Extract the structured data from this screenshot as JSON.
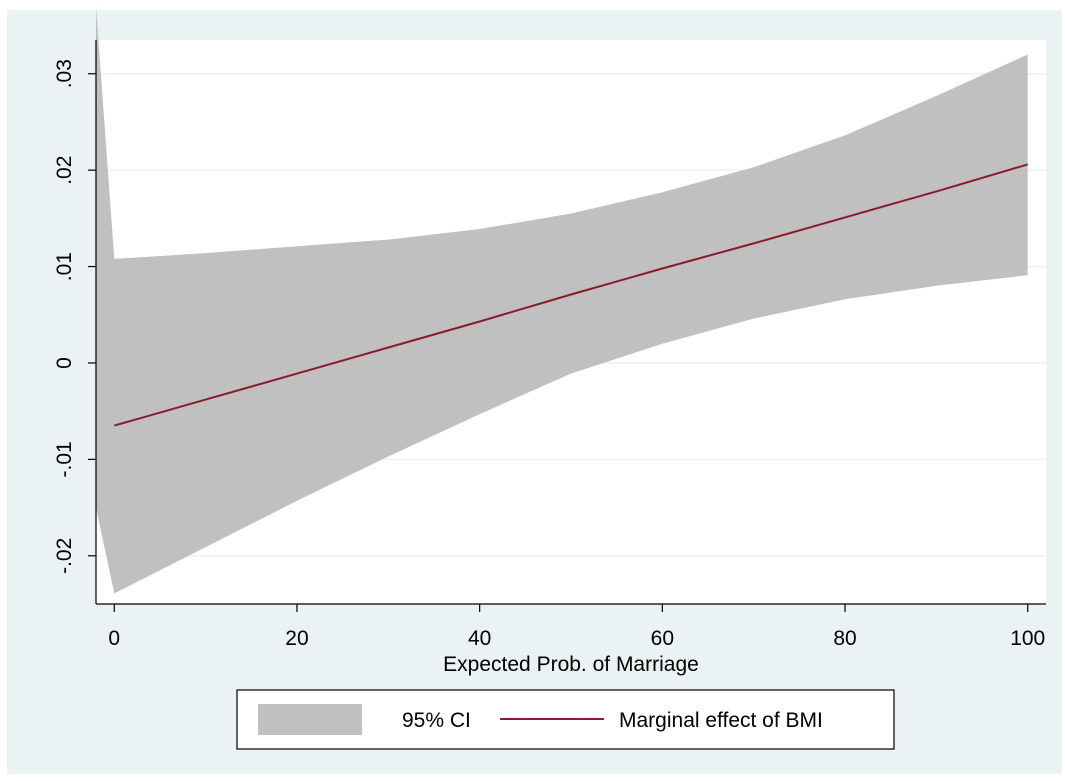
{
  "chart_data": {
    "type": "area",
    "title": "",
    "xlabel": "Expected Prob. of Marriage",
    "ylabel": "",
    "xlim": [
      -2,
      102
    ],
    "ylim": [
      -0.025,
      0.0335
    ],
    "xticks": [
      {
        "value": 0,
        "label": "0"
      },
      {
        "value": 20,
        "label": "20"
      },
      {
        "value": 40,
        "label": "40"
      },
      {
        "value": 60,
        "label": "60"
      },
      {
        "value": 80,
        "label": "80"
      },
      {
        "value": 100,
        "label": "100"
      }
    ],
    "yticks": [
      {
        "value": -0.02,
        "label": "-.02"
      },
      {
        "value": -0.01,
        "label": "-.01"
      },
      {
        "value": 0,
        "label": "0"
      },
      {
        "value": 0.01,
        "label": ".01"
      },
      {
        "value": 0.02,
        "label": ".02"
      },
      {
        "value": 0.03,
        "label": ".03"
      }
    ],
    "grid": true,
    "legend_position": "bottom",
    "x": [
      0,
      10,
      20,
      30,
      40,
      50,
      60,
      70,
      80,
      90,
      100
    ],
    "series": [
      {
        "name": "95% CI",
        "kind": "band",
        "lower": [
          -0.0239,
          -0.0191,
          -0.0143,
          -0.0097,
          -0.0053,
          -0.0011,
          0.002,
          0.0046,
          0.0066,
          0.008,
          0.0091
        ],
        "upper": [
          0.0108,
          0.0114,
          0.0121,
          0.0128,
          0.0139,
          0.0155,
          0.0177,
          0.0203,
          0.0236,
          0.0277,
          0.032
        ],
        "left_edge": {
          "x": -2,
          "lower": -0.015,
          "upper": 0.037
        },
        "color": "#c0c0c0"
      },
      {
        "name": "Marginal effect of BMI",
        "kind": "line",
        "values": [
          -0.0065,
          -0.0038,
          -0.0011,
          0.0016,
          0.0043,
          0.0071,
          0.0098,
          0.0124,
          0.0151,
          0.0178,
          0.0206
        ],
        "color": "#8b1a2b"
      }
    ]
  },
  "colors": {
    "outer_background": "#eaf2f3",
    "plot_background": "#ffffff",
    "gridline": "#eaf2f3",
    "axis": "#000000"
  }
}
